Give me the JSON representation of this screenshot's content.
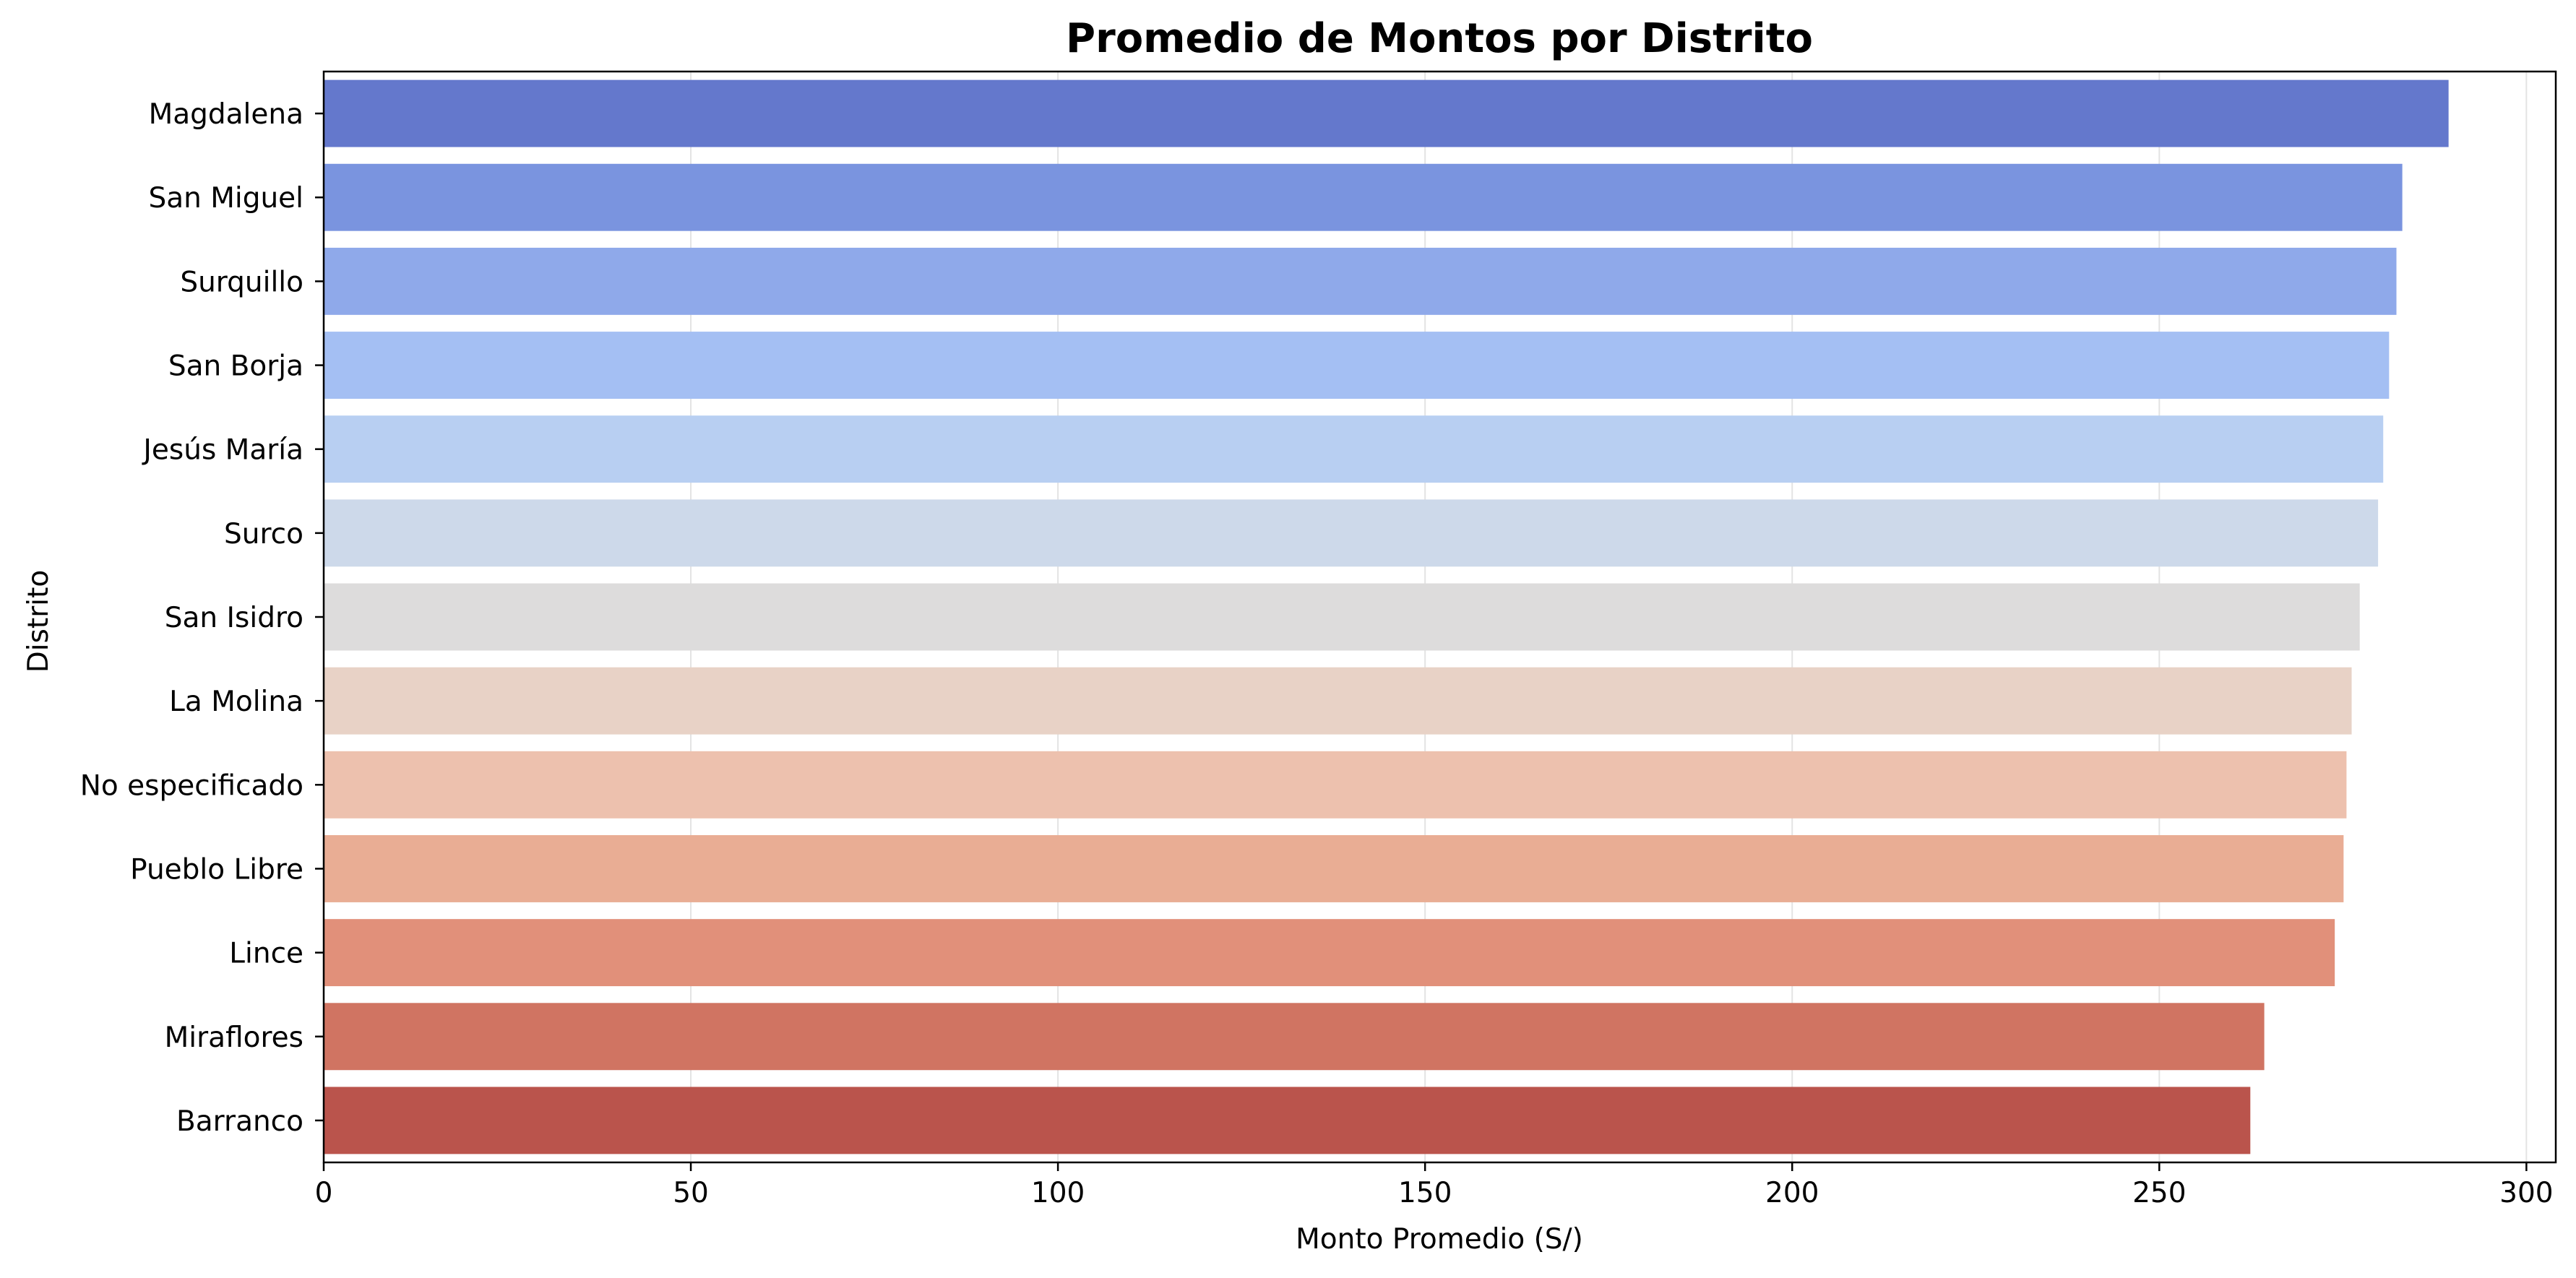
{
  "chart_data": {
    "type": "bar",
    "orientation": "horizontal",
    "title": "Promedio de Montos por Distrito",
    "xlabel": "Monto Promedio (S/)",
    "ylabel": "Distrito",
    "xlim": [
      0,
      304
    ],
    "xticks": [
      0,
      50,
      100,
      150,
      200,
      250,
      300
    ],
    "grid": "x",
    "categories": [
      "Magdalena",
      "San Miguel",
      "Surquillo",
      "San Borja",
      "Jesús María",
      "Surco",
      "San Isidro",
      "La Molina",
      "No especificado",
      "Pueblo Libre",
      "Lince",
      "Miraflores",
      "Barranco"
    ],
    "values": [
      289.4,
      283.1,
      282.3,
      281.3,
      280.5,
      279.8,
      277.3,
      276.2,
      275.5,
      275.1,
      273.9,
      264.3,
      262.4
    ],
    "colors": [
      "#6478cc",
      "#7a94df",
      "#8fa9ea",
      "#a4bff3",
      "#b8cff2",
      "#cdd9ea",
      "#dddcdc",
      "#e8d2c6",
      "#edc1ae",
      "#e9ad94",
      "#e1907a",
      "#d07462",
      "#ba544c"
    ]
  }
}
